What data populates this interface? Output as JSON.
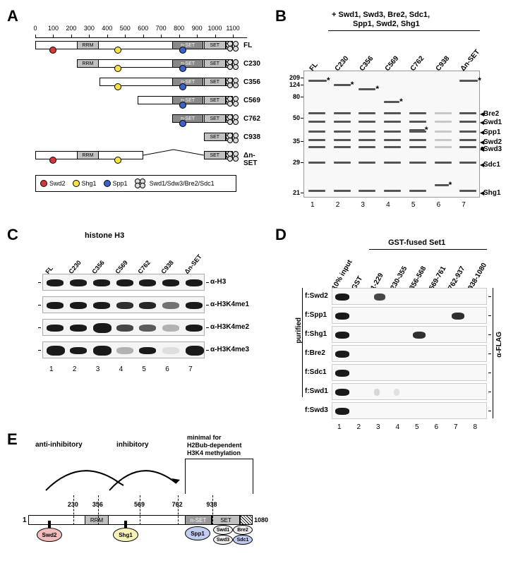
{
  "panel_labels": {
    "A": "A",
    "B": "B",
    "C": "C",
    "D": "D",
    "E": "E"
  },
  "panelA": {
    "ruler_ticks": [
      "0",
      "100",
      "200",
      "300",
      "400",
      "500",
      "600",
      "700",
      "800",
      "900",
      "1000",
      "1100"
    ],
    "constructs": [
      "FL",
      "C230",
      "C356",
      "C569",
      "C762",
      "C938",
      "Δn-SET"
    ],
    "domains": {
      "rrm": "RRM",
      "nset": "n-SET",
      "set": "SET"
    },
    "legend": {
      "swd2": "Swd2",
      "shg1": "Shg1",
      "spp1": "Spp1",
      "cluster": "Swd1/Sdw3/Bre2/Sdc1"
    },
    "colors": {
      "red": "#d63838",
      "yellow": "#f7e23e",
      "blue": "#3a63c7",
      "gray": "#dddddd"
    }
  },
  "panelB": {
    "header_line1": "+ Swd1, Swd3, Bre2, Sdc1,",
    "header_line2": "Spp1, Swd2, Shg1",
    "lanes": [
      "FL",
      "C230",
      "C356",
      "C569",
      "C762",
      "C938",
      "Δn-SET"
    ],
    "mw": [
      "209",
      "124",
      "80",
      "50",
      "35",
      "29",
      "21"
    ],
    "side_labels": [
      "Bre2",
      "Swd1",
      "Spp1",
      "Swd2",
      "Swd3",
      "Sdc1",
      "Shg1"
    ],
    "lane_numbers": [
      "1",
      "2",
      "3",
      "4",
      "5",
      "6",
      "7"
    ]
  },
  "panelC": {
    "title": "histone H3",
    "lanes": [
      "FL",
      "C230",
      "C356",
      "C569",
      "C762",
      "C938",
      "Δn-SET"
    ],
    "antibodies": [
      "α-H3",
      "α-H3K4me1",
      "α-H3K4me2",
      "α-H3K4me3"
    ],
    "lane_numbers": [
      "1",
      "2",
      "3",
      "4",
      "5",
      "6",
      "7"
    ]
  },
  "panelD": {
    "header": "GST-fused Set1",
    "lanes": [
      "10% input",
      "GST",
      "1-229",
      "230-355",
      "356-568",
      "569-761",
      "762-937",
      "938-1080"
    ],
    "proteins": [
      "f:Swd2",
      "f:Spp1",
      "f:Shg1",
      "f:Bre2",
      "f:Sdc1",
      "f:Swd1",
      "f:Swd3"
    ],
    "side_label": "α-FLAG",
    "left_label": "purified",
    "lane_numbers": [
      "1",
      "2",
      "3",
      "4",
      "5",
      "6",
      "7",
      "8"
    ]
  },
  "panelE": {
    "labels": {
      "anti": "anti-inhibitory",
      "inhib": "inhibitory",
      "min_l1": "minimal for",
      "min_l2": "H2Bub-dependent",
      "min_l3": "H3K4 methylation"
    },
    "positions": [
      "1",
      "230",
      "356",
      "569",
      "762",
      "938",
      "1080"
    ],
    "domains": {
      "rrm": "RRM",
      "nset": "n-SET",
      "set": "SET"
    },
    "subunits": {
      "swd2": "Swd2",
      "shg1": "Shg1",
      "spp1": "Spp1",
      "swd1": "Swd1",
      "swd3": "Swd3",
      "bre2": "Bre2",
      "sdc1": "Sdc1"
    }
  }
}
